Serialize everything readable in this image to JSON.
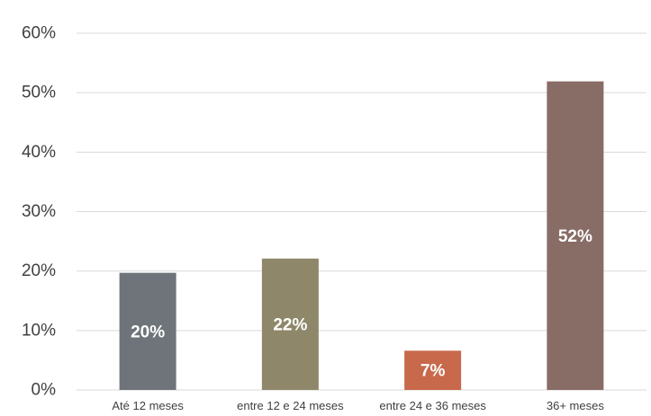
{
  "chart_data": {
    "type": "bar",
    "categories": [
      "Até 12 meses",
      "entre 12 e 24 meses",
      "entre 24 e 36 meses",
      "36+ meses"
    ],
    "values": [
      19.7,
      22.1,
      6.6,
      51.9
    ],
    "data_labels": [
      "20%",
      "22%",
      "7%",
      "52%"
    ],
    "colors": [
      "#6e7479",
      "#8e876a",
      "#c8694c",
      "#886c66"
    ],
    "ylim": [
      0,
      60
    ],
    "yticks": [
      0,
      10,
      20,
      30,
      40,
      50,
      60
    ],
    "ytick_labels": [
      "0%",
      "10%",
      "20%",
      "30%",
      "40%",
      "50%",
      "60%"
    ],
    "grid": true,
    "legend": "none"
  }
}
